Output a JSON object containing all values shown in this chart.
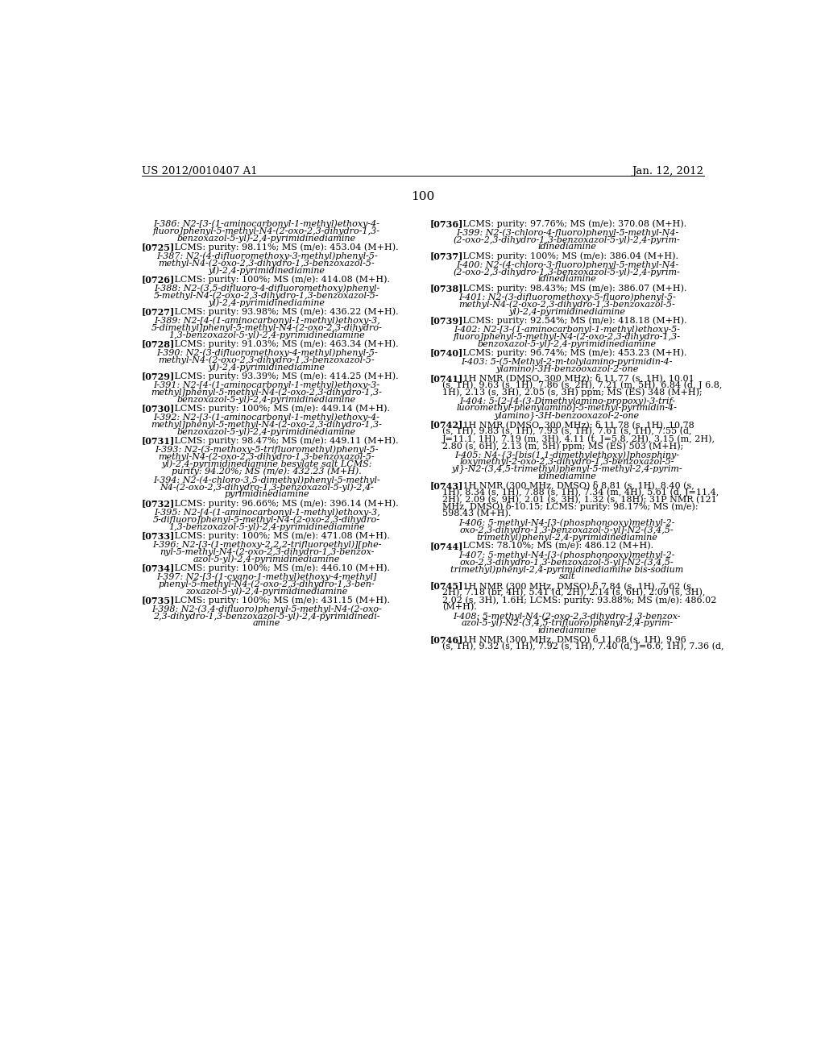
{
  "background_color": "#ffffff",
  "header_left": "US 2012/0010407 A1",
  "header_right": "Jan. 12, 2012",
  "page_number": "100",
  "left_column": [
    {
      "type": "compound",
      "text": "I-386: N2-[3-(1-aminocarbonyl-1-methyl)ethoxy-4-\nfluoro]phenyl-5-methyl-N4-(2-oxo-2,3-dihydro-1,3-\nbenzoxazol-5-yl)-2,4-pyrimidinediamine"
    },
    {
      "type": "lcms",
      "tag": "[0725]",
      "text": "LCMS: purity: 98.11%; MS (m/e): 453.04 (M+H)."
    },
    {
      "type": "compound",
      "text": "I-387: N2-(4-difluoromethoxy-3-methyl)phenyl-5-\nmethyl-N4-(2-oxo-2,3-dihydro-1,3-benzoxazol-5-\nyl)-2,4-pyrimidinediamine"
    },
    {
      "type": "lcms",
      "tag": "[0726]",
      "text": "LCMS: purity: 100%; MS (m/e): 414.08 (M+H)."
    },
    {
      "type": "compound",
      "text": "I-388: N2-(3,5-difluoro-4-difluoromethoxy)phenyl-\n5-methyl-N4-(2-oxo-2,3-dihydro-1,3-benzoxazol-5-\nyl)-2,4-pyrimidinediamine"
    },
    {
      "type": "lcms",
      "tag": "[0727]",
      "text": "LCMS: purity: 93.98%; MS (m/e): 436.22 (M+H)."
    },
    {
      "type": "compound",
      "text": "I-389: N2-[4-(1-aminocarbonyl-1-methyl)ethoxy-3,\n5-dimethyl]phenyl-5-methyl-N4-(2-oxo-2,3-dihydro-\n1,3-benzoxazol-5-yl)-2,4-pyrimidinediamine"
    },
    {
      "type": "lcms",
      "tag": "[0728]",
      "text": "LCMS: purity: 91.03%; MS (m/e): 463.34 (M+H)."
    },
    {
      "type": "compound",
      "text": "I-390: N2-(3-difluoromethoxy-4-methyl)phenyl-5-\nmethyl-N4-(2-oxo-2,3-dihydro-1,3-benzoxazol-5-\nyl)-2,4-pyrimidinediamine"
    },
    {
      "type": "lcms",
      "tag": "[0729]",
      "text": "LCMS: purity: 93.39%; MS (m/e): 414.25 (M+H)."
    },
    {
      "type": "compound",
      "text": "I-391: N2-[4-(1-aminocarbonyl-1-methyl)ethoxy-3-\nmethyl]phenyl-5-methyl-N4-(2-oxo-2,3-dihydro-1,3-\nbenzoxazol-5-yl)-2,4-pyrimidinediamine"
    },
    {
      "type": "lcms",
      "tag": "[0730]",
      "text": "LCMS: purity: 100%; MS (m/e): 449.14 (M+H)."
    },
    {
      "type": "compound",
      "text": "I-392: N2-[3-(1-aminocarbonyl-1-methyl)ethoxy-4-\nmethyl]phenyl-5-methyl-N4-(2-oxo-2,3-dihydro-1,3-\nbenzoxazol-5-yl)-2,4-pyrimidinediamine"
    },
    {
      "type": "lcms",
      "tag": "[0731]",
      "text": "LCMS: purity: 98.47%; MS (m/e): 449.11 (M+H)."
    },
    {
      "type": "compound",
      "text": "I-393: N2-(3-methoxy-5-trifluoromethyl)phenyl-5-\nmethyl-N4-(2-oxo-2,3-dihydro-1,3-benzoxazol-5-\nyl)-2,4-pyrimidinediamine besylate salt LCMS:\npurity: 94.20%; MS (m/e): 432.23 (M+H)."
    },
    {
      "type": "compound",
      "text": "I-394: N2-(4-chloro-3,5-dimethyl)phenyl-5-methyl-\nN4-(2-oxo-2,3-dihydro-1,3-benzoxazol-5-yl)-2,4-\npyrimidinediamine"
    },
    {
      "type": "lcms",
      "tag": "[0732]",
      "text": "LCMS: purity: 96.66%; MS (m/e): 396.14 (M+H)."
    },
    {
      "type": "compound",
      "text": "I-395: N2-[4-(1-aminocarbonyl-1-methyl)ethoxy-3,\n5-difluoro]phenyl-5-methyl-N4-(2-oxo-2,3-dihydro-\n1,3-benzoxazol-5-yl)-2,4-pyrimidinediamine"
    },
    {
      "type": "lcms",
      "tag": "[0733]",
      "text": "LCMS: purity: 100%; MS (m/e): 471.08 (M+H)."
    },
    {
      "type": "compound",
      "text": "I-396: N2-[3-(1-methoxy-2,2,2-trifluoroethyl)][phe-\nnyl-5-methyl-N4-(2-oxo-2,3-dihydro-1,3-benzox-\nazol-5-yl)-2,4-pyrimidinediamine"
    },
    {
      "type": "lcms",
      "tag": "[0734]",
      "text": "LCMS: purity: 100%; MS (m/e): 446.10 (M+H)."
    },
    {
      "type": "compound",
      "text": "I-397: N2-[3-(1-cyano-1-methyl)ethoxy-4-methyl]\nphenyl-5-methyl-N4-(2-oxo-2,3-dihydro-1,3-ben-\nzoxazol-5-yl)-2,4-pyrimidinediamine"
    },
    {
      "type": "lcms",
      "tag": "[0735]",
      "text": "LCMS: purity: 100%; MS (m/e): 431.15 (M+H)."
    },
    {
      "type": "compound",
      "text": "I-398: N2-(3,4-difluoro)phenyl-5-methyl-N4-(2-oxo-\n2,3-dihydro-1,3-benzoxazol-5-yl)-2,4-pyrimidinedi-\namine"
    }
  ],
  "right_column": [
    {
      "type": "lcms",
      "tag": "[0736]",
      "text": "LCMS: purity: 97.76%; MS (m/e): 370.08 (M+H)."
    },
    {
      "type": "compound",
      "text": "I-399: N2-(3-chloro-4-fluoro)phenyl-5-methyl-N4-\n(2-oxo-2,3-dihydro-1,3-benzoxazol-5-yl)-2,4-pyrim-\nidinediamine"
    },
    {
      "type": "lcms",
      "tag": "[0737]",
      "text": "LCMS: purity: 100%; MS (m/e): 386.04 (M+H)."
    },
    {
      "type": "compound",
      "text": "I-400: N2-(4-chloro-3-fluoro)phenyl-5-methyl-N4-\n(2-oxo-2,3-dihydro-1,3-benzoxazol-5-yl)-2,4-pyrim-\nidinediamine"
    },
    {
      "type": "lcms",
      "tag": "[0738]",
      "text": "LCMS: purity: 98.43%; MS (m/e): 386.07 (M+H)."
    },
    {
      "type": "compound",
      "text": "I-401: N2-(3-difluoromethoxy-5-fluoro)phenyl-5-\nmethyl-N4-(2-oxo-2,3-dihydro-1,3-benzoxazol-5-\nyl)-2,4-pyrimidinediamine"
    },
    {
      "type": "lcms",
      "tag": "[0739]",
      "text": "LCMS: purity: 92.54%; MS (m/e): 418.18 (M+H)."
    },
    {
      "type": "compound",
      "text": "I-402: N2-[3-(1-aminocarbonyl-1-methyl)ethoxy-5-\nfluoro]phenyl-5-methyl-N4-(2-oxo-2,3-dihydro-1,3-\nbenzoxazol-5-yl)-2,4-pyrimidinediamine"
    },
    {
      "type": "lcms",
      "tag": "[0740]",
      "text": "LCMS: purity: 96.74%; MS (m/e): 453.23 (M+H)."
    },
    {
      "type": "compound",
      "text": "I-403: 5-(5-Methyl-2-m-tolylamino-pyrimidin-4-\nylamino)-3H-benzooxazol-2-one"
    },
    {
      "type": "nmr",
      "tag": "[0741]",
      "text": "1H NMR (DMSO, 300 MHz): δ 11.77 (s, 1H), 10.01\n(s, 1H), 9.63 (s, 1H), 7.86 (s, 2H), 7.21 (m, 5H), 6.84 (d, J 6.8,\n1H), 2.13 (s, 3H), 2.05 (s, 3H) ppm; MS (ES) 348 (M+H);"
    },
    {
      "type": "compound",
      "text": "I-404: 5-[2-[4-(3-Dimethylamino-propoxy)-3-trif-\nluoromethyl-phenylamino]-5-methyl-pyrimidin-4-\nylamino}-3H-benzooxazol-2-one"
    },
    {
      "type": "nmr",
      "tag": "[0742]",
      "text": "1H NMR (DMSO, 300 MHz): δ 11.78 (s, 1H), 10.78\n(s, 1H), 9.83 (s, 1H), 7.93 (s, 1H), 7.61 (s, 1H), 7.55 (d,\nJ=11.1, 1H), 7.19 (m, 3H), 4.11 (t, J=5.8, 2H), 3.15 (m, 2H),\n2.80 (s, 6H), 2.13 (m, 5H) ppm; MS (ES) 503 (M+H);"
    },
    {
      "type": "compound",
      "text": "I-405: N4-{3-[bis(1,1-dimethylethoxy)]phosphiny-\nloxymethyl-2-oxo-2,3-dihydro-1,3-benzoxazol-5-\nyl}-N2-(3,4,5-trimethyl)phenyl-5-methyl-2,4-pyrim-\nidinediamine"
    },
    {
      "type": "nmr",
      "tag": "[0743]",
      "text": "1H NMR (300 MHz, DMSO) δ 8.81 (s, 1H), 8.40 (s,\n1H), 8.34 (s, 1H), 7.88 (s, 1H), 7.34 (m, 4H), 5.61 (d, J=11.4,\n2H), 2.09 (s, 9H), 2.01 (s, 3H), 1.32 (s, 18H); 31P NMR (121\nMHz, DMSO) δ-10.15; LCMS: purity: 98.17%; MS (m/e):\n598.43 (M+H)."
    },
    {
      "type": "compound",
      "text": "I-406: 5-methyl-N4-[3-(phosphonooxy)methyl-2-\noxo-2,3-dihydro-1,3-benzoxazol-5-yl]-N2-(3,4,5-\ntrimethyl)phenyl-2,4-pyrimidinediamine"
    },
    {
      "type": "lcms",
      "tag": "[0744]",
      "text": "LCMS: 78.10%; MS (m/e): 486.12 (M+H)."
    },
    {
      "type": "compound",
      "text": "I-407: 5-methyl-N4-[3-(phosphonooxy)methyl-2-\noxo-2,3-dihydro-1,3-benzoxazol-5-yl]-N2-(3,4,5-\ntrimethyl)phenyl-2,4-pyrimidinediamine bis-sodium\nsalt"
    },
    {
      "type": "nmr",
      "tag": "[0745]",
      "text": "1H NMR (300 MHz, DMSO) δ 7.84 (s, 1H), 7.62 (s,\n2H), 7.18 (br, 4H), 5.41 (d, 2H), 2.14 (s, 6H), 2.09 (s, 3H),\n2.02 (s, 3H), 1.6H; LCMS: purity: 93.88%; MS (m/e): 486.02\n(M+H)."
    },
    {
      "type": "compound",
      "text": "I-408: 5-methyl-N4-(2-oxo-2,3-dihydro-1,3-benzox-\nazol-5-yl)-N2-(3,4,5-trifluoro)phenyl-2,4-pyrim-\nidinediamine"
    },
    {
      "type": "nmr_partial",
      "tag": "[0746]",
      "text": "1H NMR (300 MHz, DMSO) δ 11.68 (s, 1H), 9.96\n(s, 1H), 9.32 (s, 1H), 7.92 (s, 1H), 7.40 (d, J=6.6, 1H), 7.36 (d,"
    }
  ]
}
